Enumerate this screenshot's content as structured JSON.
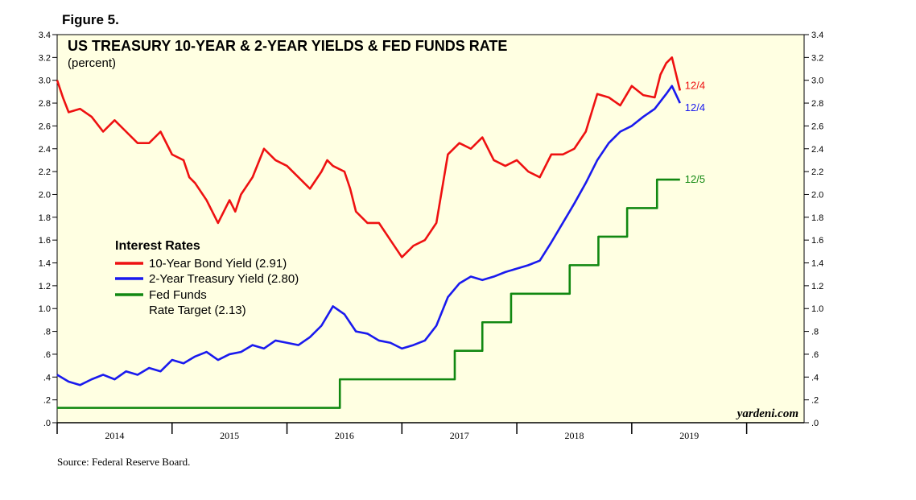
{
  "figure_label": "Figure 5.",
  "source": "Source: Federal Reserve Board.",
  "brand": "yardeni.com",
  "chart_data": {
    "type": "line",
    "title": "US TREASURY 10-YEAR & 2-YEAR YIELDS & FED FUNDS RATE",
    "subtitle": "(percent)",
    "ylim": [
      0,
      3.4
    ],
    "yticks": [
      0,
      0.2,
      0.4,
      0.6,
      0.8,
      1.0,
      1.2,
      1.4,
      1.6,
      1.8,
      2.0,
      2.2,
      2.4,
      2.6,
      2.8,
      3.0,
      3.2,
      3.4
    ],
    "ytick_labels": [
      ".0",
      ".2",
      ".4",
      ".6",
      ".8",
      "1.0",
      "1.2",
      "1.4",
      "1.6",
      "1.8",
      "2.0",
      "2.2",
      "2.4",
      "2.6",
      "2.8",
      "3.0",
      "3.2",
      "3.4"
    ],
    "xlim": [
      2013.5,
      2020.0
    ],
    "xtick_labels": [
      "2014",
      "2015",
      "2016",
      "2017",
      "2018",
      "2019"
    ],
    "xtick_positions": [
      2014.0,
      2015.0,
      2016.0,
      2017.0,
      2018.0,
      2019.0
    ],
    "legend": {
      "title": "Interest Rates",
      "entries": [
        {
          "label": "10-Year Bond Yield (2.91)"
        },
        {
          "label": "2-Year Treasury Yield (2.80)"
        },
        {
          "label": "Fed Funds",
          "label2": "Rate Target (2.13)"
        }
      ]
    },
    "series": [
      {
        "name": "10-Year Bond Yield",
        "color": "#ee1111",
        "end_label": "12/4",
        "x": [
          2013.5,
          2013.55,
          2013.6,
          2013.7,
          2013.8,
          2013.9,
          2014.0,
          2014.1,
          2014.2,
          2014.3,
          2014.4,
          2014.5,
          2014.6,
          2014.65,
          2014.7,
          2014.8,
          2014.9,
          2015.0,
          2015.05,
          2015.1,
          2015.2,
          2015.3,
          2015.4,
          2015.5,
          2015.6,
          2015.7,
          2015.8,
          2015.85,
          2015.9,
          2016.0,
          2016.05,
          2016.1,
          2016.2,
          2016.3,
          2016.4,
          2016.5,
          2016.6,
          2016.7,
          2016.8,
          2016.9,
          2017.0,
          2017.1,
          2017.2,
          2017.3,
          2017.4,
          2017.5,
          2017.6,
          2017.7,
          2017.8,
          2017.9,
          2018.0,
          2018.1,
          2018.2,
          2018.3,
          2018.4,
          2018.5,
          2018.6,
          2018.7,
          2018.75,
          2018.8,
          2018.85,
          2018.92
        ],
        "values": [
          3.0,
          2.85,
          2.72,
          2.75,
          2.68,
          2.55,
          2.65,
          2.55,
          2.45,
          2.45,
          2.55,
          2.35,
          2.3,
          2.15,
          2.1,
          1.95,
          1.75,
          1.95,
          1.85,
          2.0,
          2.15,
          2.4,
          2.3,
          2.25,
          2.15,
          2.05,
          2.2,
          2.3,
          2.25,
          2.2,
          2.05,
          1.85,
          1.75,
          1.75,
          1.6,
          1.45,
          1.55,
          1.6,
          1.75,
          2.35,
          2.45,
          2.4,
          2.5,
          2.3,
          2.25,
          2.3,
          2.2,
          2.15,
          2.35,
          2.35,
          2.4,
          2.55,
          2.88,
          2.85,
          2.78,
          2.95,
          2.87,
          2.85,
          3.05,
          3.15,
          3.2,
          2.91
        ]
      },
      {
        "name": "2-Year Treasury Yield",
        "color": "#1a1aee",
        "end_label": "12/4",
        "x": [
          2013.5,
          2013.6,
          2013.7,
          2013.8,
          2013.9,
          2014.0,
          2014.1,
          2014.2,
          2014.3,
          2014.4,
          2014.5,
          2014.6,
          2014.7,
          2014.8,
          2014.9,
          2015.0,
          2015.1,
          2015.2,
          2015.3,
          2015.4,
          2015.5,
          2015.6,
          2015.7,
          2015.8,
          2015.9,
          2016.0,
          2016.1,
          2016.2,
          2016.3,
          2016.4,
          2016.5,
          2016.6,
          2016.7,
          2016.8,
          2016.9,
          2017.0,
          2017.1,
          2017.2,
          2017.3,
          2017.4,
          2017.5,
          2017.6,
          2017.7,
          2017.8,
          2017.9,
          2018.0,
          2018.1,
          2018.2,
          2018.3,
          2018.4,
          2018.5,
          2018.6,
          2018.7,
          2018.8,
          2018.85,
          2018.92
        ],
        "values": [
          0.42,
          0.36,
          0.33,
          0.38,
          0.42,
          0.38,
          0.45,
          0.42,
          0.48,
          0.45,
          0.55,
          0.52,
          0.58,
          0.62,
          0.55,
          0.6,
          0.62,
          0.68,
          0.65,
          0.72,
          0.7,
          0.68,
          0.75,
          0.85,
          1.02,
          0.95,
          0.8,
          0.78,
          0.72,
          0.7,
          0.65,
          0.68,
          0.72,
          0.85,
          1.1,
          1.22,
          1.28,
          1.25,
          1.28,
          1.32,
          1.35,
          1.38,
          1.42,
          1.58,
          1.75,
          1.92,
          2.1,
          2.3,
          2.45,
          2.55,
          2.6,
          2.68,
          2.75,
          2.88,
          2.95,
          2.8
        ]
      },
      {
        "name": "Fed Funds Rate Target",
        "color": "#118811",
        "end_label": "12/5",
        "step": true,
        "x": [
          2013.5,
          2015.96,
          2016.96,
          2017.2,
          2017.45,
          2017.96,
          2018.21,
          2018.46,
          2018.72,
          2018.92
        ],
        "values": [
          0.13,
          0.38,
          0.63,
          0.88,
          1.13,
          1.38,
          1.63,
          1.88,
          2.13,
          2.13
        ]
      }
    ]
  }
}
